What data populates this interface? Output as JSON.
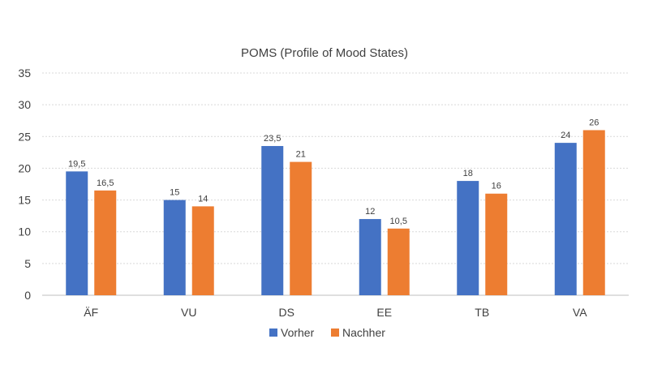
{
  "chart_data": {
    "type": "bar",
    "title": "POMS (Profile of Mood States)",
    "xlabel": "",
    "ylabel": "",
    "categories": [
      "ÄF",
      "VU",
      "DS",
      "EE",
      "TB",
      "VA"
    ],
    "series": [
      {
        "name": "Vorher",
        "values": [
          19.5,
          15,
          23.5,
          12,
          18,
          24
        ],
        "labels": [
          "19,5",
          "15",
          "23,5",
          "12",
          "18",
          "24"
        ],
        "color": "#4472c4"
      },
      {
        "name": "Nachher",
        "values": [
          16.5,
          14,
          21,
          10.5,
          16,
          26
        ],
        "labels": [
          "16,5",
          "14",
          "21",
          "10,5",
          "16",
          "26"
        ],
        "color": "#ed7d31"
      }
    ],
    "ylim": [
      0,
      35
    ],
    "yticks": [
      "0",
      "5",
      "10",
      "15",
      "20",
      "25",
      "30",
      "35"
    ],
    "grid": true,
    "legend_position": "bottom"
  }
}
